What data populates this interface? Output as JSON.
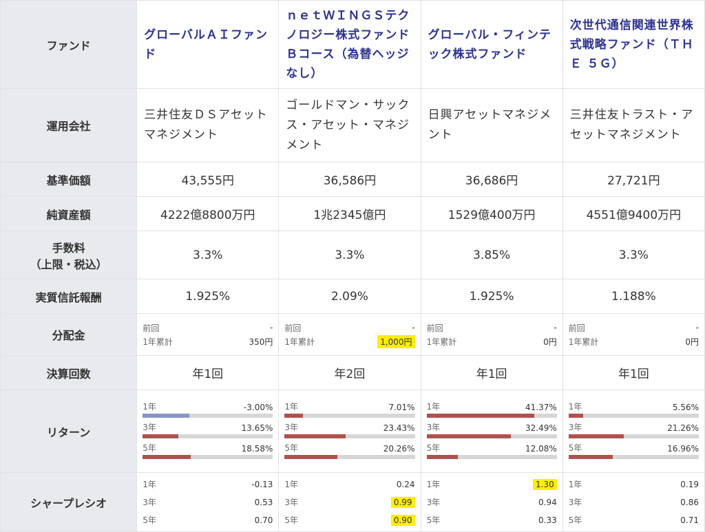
{
  "labels": {
    "fund": "ファンド",
    "company": "運用会社",
    "nav": "基準価額",
    "net_assets": "純資産額",
    "fee_line1": "手数料",
    "fee_line2": "（上限・税込）",
    "trust_fee": "実質信託報酬",
    "distribution": "分配金",
    "settlements": "決算回数",
    "returns": "リターン",
    "sharpe": "シャープレシオ"
  },
  "sub_labels": {
    "prev": "前回",
    "annual_total": "1年累計",
    "y1": "1年",
    "y3": "3年",
    "y5": "5年"
  },
  "colors": {
    "highlight": "#ffee00",
    "positive_bar": "#b1514e",
    "negative_bar": "#8796c3",
    "fund_name": "#2c3290"
  },
  "return_scale_max_percent": 50,
  "funds": [
    {
      "name": "グローバルＡＩファンド",
      "company": "三井住友ＤＳアセットマネジメント",
      "nav": "43,555円",
      "net_assets": "4222億8800万円",
      "fee": "3.3%",
      "trust_fee": "1.925%",
      "dist_prev": "-",
      "dist_total": "350円",
      "dist_total_highlight": false,
      "settlements": "年1回",
      "returns": [
        {
          "label": "1年",
          "value": "-3.00%",
          "pct": -3.0
        },
        {
          "label": "3年",
          "value": "13.65%",
          "pct": 13.65
        },
        {
          "label": "5年",
          "value": "18.58%",
          "pct": 18.58
        }
      ],
      "sharpe": [
        {
          "label": "1年",
          "value": "-0.13",
          "highlight": false
        },
        {
          "label": "3年",
          "value": "0.53",
          "highlight": false
        },
        {
          "label": "5年",
          "value": "0.70",
          "highlight": false
        }
      ]
    },
    {
      "name": "ｎｅｔＷＩＮＧＳテクノロジー株式ファンドＢコース（為替ヘッジなし）",
      "company": "ゴールドマン・サックス・アセット・マネジメント",
      "nav": "36,586円",
      "net_assets": "1兆2345億円",
      "fee": "3.3%",
      "trust_fee": "2.09%",
      "dist_prev": "-",
      "dist_total": "1,000円",
      "dist_total_highlight": true,
      "settlements": "年2回",
      "returns": [
        {
          "label": "1年",
          "value": "7.01%",
          "pct": 7.01
        },
        {
          "label": "3年",
          "value": "23.43%",
          "pct": 23.43
        },
        {
          "label": "5年",
          "value": "20.26%",
          "pct": 20.26
        }
      ],
      "sharpe": [
        {
          "label": "1年",
          "value": "0.24",
          "highlight": false
        },
        {
          "label": "3年",
          "value": "0.99",
          "highlight": true
        },
        {
          "label": "5年",
          "value": "0.90",
          "highlight": true
        }
      ]
    },
    {
      "name": "グローバル・フィンテック株式ファンド",
      "company": "日興アセットマネジメント",
      "nav": "36,686円",
      "net_assets": "1529億400万円",
      "fee": "3.85%",
      "trust_fee": "1.925%",
      "dist_prev": "-",
      "dist_total": "0円",
      "dist_total_highlight": false,
      "settlements": "年1回",
      "returns": [
        {
          "label": "1年",
          "value": "41.37%",
          "pct": 41.37
        },
        {
          "label": "3年",
          "value": "32.49%",
          "pct": 32.49
        },
        {
          "label": "5年",
          "value": "12.08%",
          "pct": 12.08
        }
      ],
      "sharpe": [
        {
          "label": "1年",
          "value": "1.30",
          "highlight": true
        },
        {
          "label": "3年",
          "value": "0.94",
          "highlight": false
        },
        {
          "label": "5年",
          "value": "0.33",
          "highlight": false
        }
      ]
    },
    {
      "name": "次世代通信関連世界株式戦略ファンド（ＴＨＥ ５Ｇ）",
      "company": "三井住友トラスト・アセットマネジメント",
      "nav": "27,721円",
      "net_assets": "4551億9400万円",
      "fee": "3.3%",
      "trust_fee": "1.188%",
      "dist_prev": "-",
      "dist_total": "0円",
      "dist_total_highlight": false,
      "settlements": "年1回",
      "returns": [
        {
          "label": "1年",
          "value": "5.56%",
          "pct": 5.56
        },
        {
          "label": "3年",
          "value": "21.26%",
          "pct": 21.26
        },
        {
          "label": "5年",
          "value": "16.96%",
          "pct": 16.96
        }
      ],
      "sharpe": [
        {
          "label": "1年",
          "value": "0.19",
          "highlight": false
        },
        {
          "label": "3年",
          "value": "0.86",
          "highlight": false
        },
        {
          "label": "5年",
          "value": "0.71",
          "highlight": false
        }
      ]
    }
  ]
}
